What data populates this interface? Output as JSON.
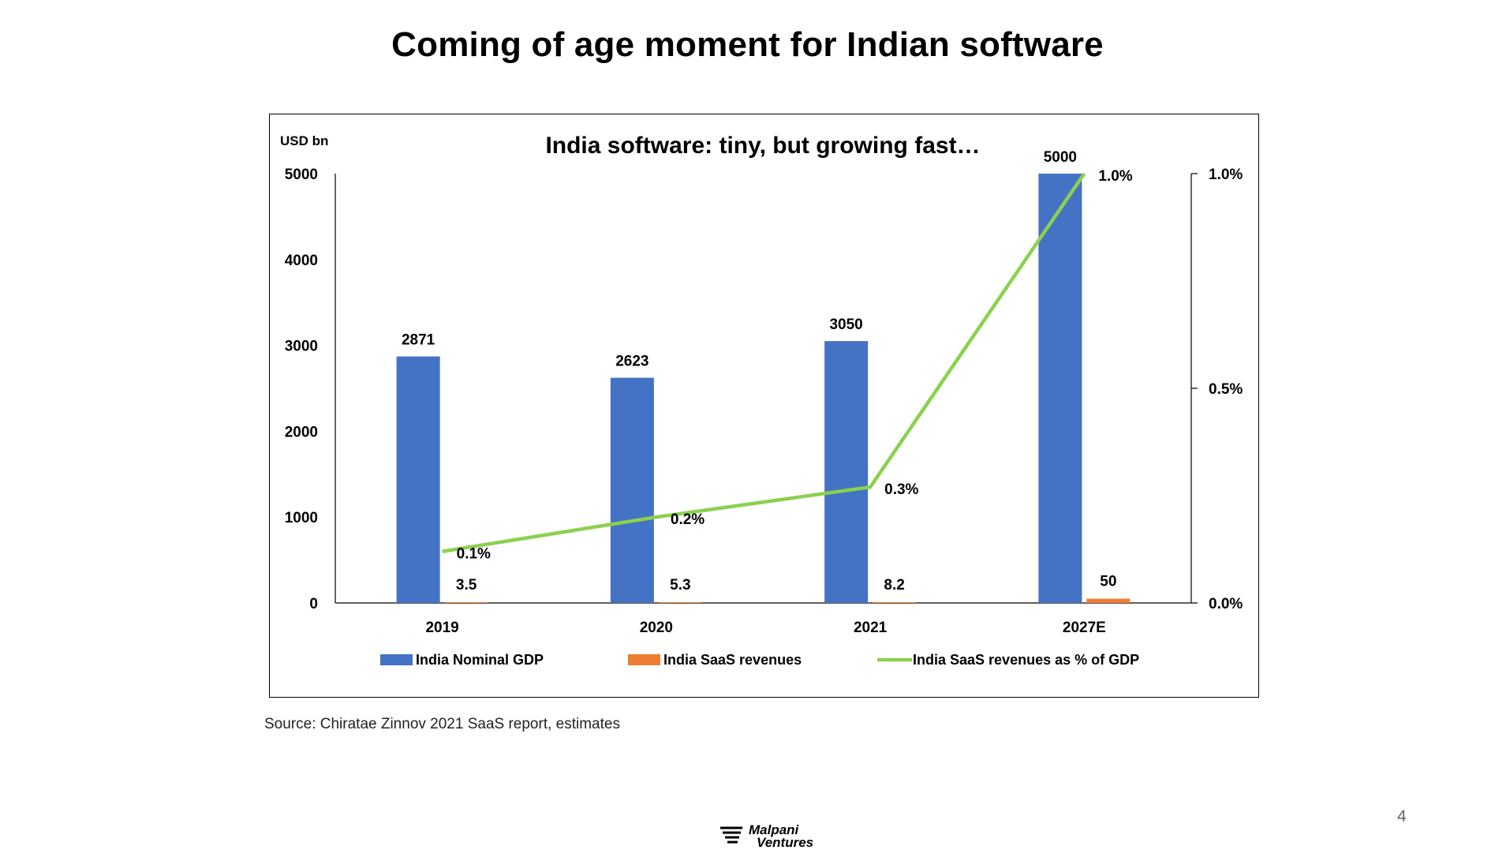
{
  "slide": {
    "title": "Coming of age moment for Indian software",
    "source": "Source: Chiratae Zinnov 2021 SaaS report, estimates",
    "page_number": "4",
    "logo_line1": "Malpani",
    "logo_line2": "Ventures"
  },
  "colors": {
    "gdp": "#4472C4",
    "saas": "#ED7D31",
    "pct": "#8BD14E"
  },
  "chart_data": {
    "type": "bar",
    "title": "India software: tiny, but growing fast…",
    "ylabel": "USD bn",
    "categories": [
      "2019",
      "2020",
      "2021",
      "2027E"
    ],
    "ylim": [
      0,
      5000
    ],
    "yticks": [
      "0",
      "1000",
      "2000",
      "3000",
      "4000",
      "5000"
    ],
    "y2lim": [
      0,
      1.0
    ],
    "y2ticks": [
      "0.0%",
      "0.5%",
      "1.0%"
    ],
    "legend_position": "bottom",
    "grid": false,
    "series": [
      {
        "name": "India Nominal GDP",
        "kind": "bar",
        "values": [
          2871,
          2623,
          3050,
          5000
        ],
        "labels": [
          "2871",
          "2623",
          "3050",
          "5000"
        ]
      },
      {
        "name": "India SaaS revenues",
        "kind": "bar",
        "values": [
          3.5,
          5.3,
          8.2,
          50
        ],
        "labels": [
          "3.5",
          "5.3",
          "8.2",
          "50"
        ]
      },
      {
        "name": "India SaaS revenues as % of GDP",
        "kind": "line",
        "axis": "right",
        "values": [
          0.12,
          0.2,
          0.27,
          1.0
        ],
        "labels": [
          "0.1%",
          "0.2%",
          "0.3%",
          "1.0%"
        ]
      }
    ]
  }
}
